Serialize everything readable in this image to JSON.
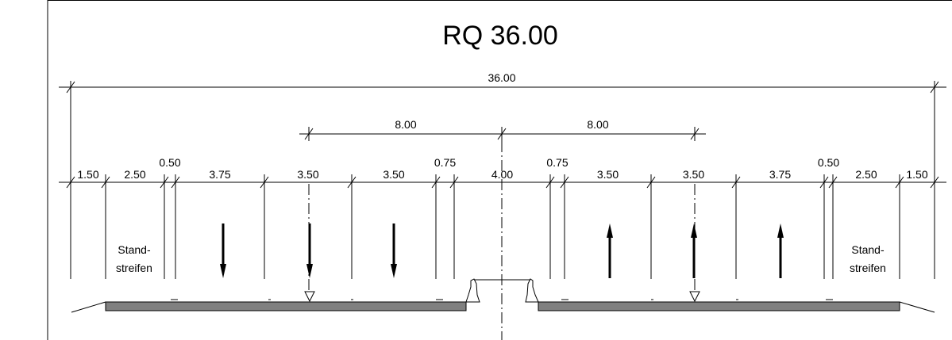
{
  "title": "RQ 36.00",
  "total_width": "36.00",
  "median_to_lane_axis": [
    "8.00",
    "8.00"
  ],
  "segment_dims": [
    "1.50",
    "2.50",
    "0.50",
    "3.75",
    "3.50",
    "3.50",
    "0.75",
    "4.00",
    "0.75",
    "3.50",
    "3.50",
    "3.75",
    "0.50",
    "2.50",
    "1.50"
  ],
  "shoulder_label_left": [
    "Stand-",
    "streifen"
  ],
  "shoulder_label_right": [
    "Stand-",
    "streifen"
  ],
  "colors": {
    "line": "#000000",
    "pavement": "#808080",
    "background": "#ffffff"
  }
}
